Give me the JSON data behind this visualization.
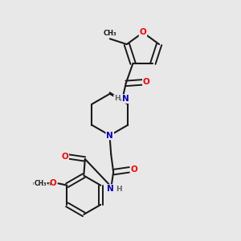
{
  "background_color": "#e8e8e8",
  "bond_color": "#1a1a1a",
  "atom_colors": {
    "O": "#ff0000",
    "N": "#0000cd",
    "C": "#1a1a1a"
  },
  "figsize": [
    3.0,
    3.0
  ],
  "dpi": 100,
  "xlim": [
    0.0,
    1.0
  ],
  "ylim": [
    0.0,
    1.0
  ]
}
